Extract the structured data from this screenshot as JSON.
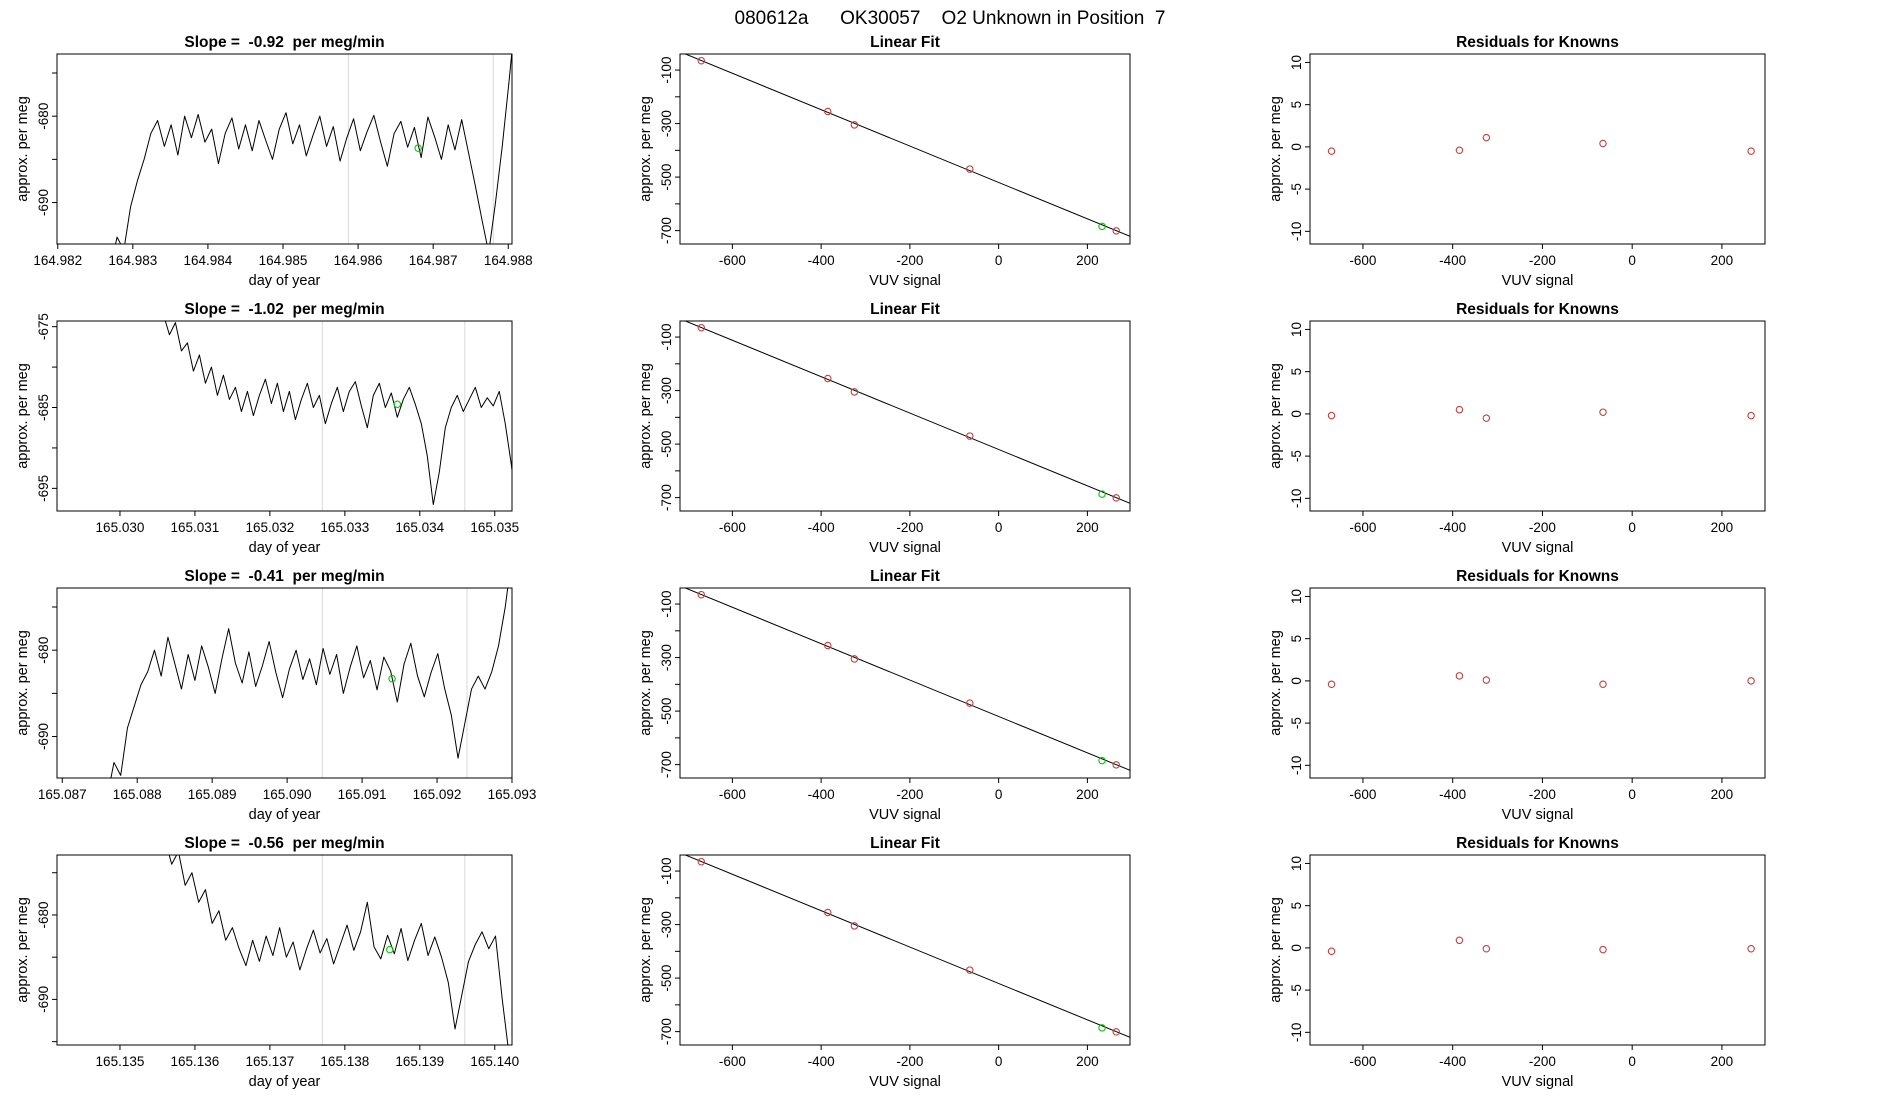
{
  "header": {
    "title": "080612a      OK30057    O2 Unknown in Position  7"
  },
  "colors": {
    "series": "#000000",
    "grid": "#d9d9d9",
    "red_point": "#bf4040",
    "green_point": "#00c800",
    "box": "#000000",
    "text": "#000000"
  },
  "chart_data": [
    {
      "type": "line",
      "panel": "timeseries",
      "col": 1,
      "title": "Slope =  -0.92  per meg/min",
      "xlabel": "day of year",
      "ylabel": "approx. per meg",
      "xlim": [
        164.98199,
        164.98805
      ],
      "ylim": [
        -694.8,
        -672.8
      ],
      "xticks": [
        164.982,
        164.983,
        164.984,
        164.985,
        164.986,
        164.987,
        164.988
      ],
      "xtick_labels": [
        "164.982",
        "164.983",
        "164.984",
        "164.985",
        "164.986",
        "164.987",
        "164.988"
      ],
      "ymajor": [
        -690,
        -680
      ],
      "ymajor_labels": [
        "-690",
        "-680"
      ],
      "yminor": [
        -685,
        -675
      ],
      "gridlines_x": [
        164.98587,
        164.9878
      ],
      "line": {
        "x0": 164.9827,
        "dx": 9e-05,
        "y": [
          -697.5,
          -694.0,
          -695.5,
          -690.5,
          -687.5,
          -685.0,
          -682.0,
          -680.5,
          -683.5,
          -681.0,
          -684.5,
          -680.0,
          -682.5,
          -679.8,
          -683.0,
          -681.5,
          -685.5,
          -682.0,
          -680.2,
          -683.8,
          -681.0,
          -684.0,
          -680.5,
          -682.8,
          -685.0,
          -681.5,
          -679.6,
          -683.2,
          -681.0,
          -684.6,
          -682.2,
          -680.0,
          -683.5,
          -681.2,
          -685.2,
          -682.5,
          -680.3,
          -684.0,
          -681.8,
          -679.9,
          -683.0,
          -685.8,
          -682.0,
          -680.6,
          -683.6,
          -681.3,
          -684.8,
          -680.1,
          -682.4,
          -685.0,
          -681.0,
          -683.9,
          -680.4,
          -684.2,
          -688.0,
          -692.0,
          -695.8,
          -690.0,
          -683.5,
          -676.0,
          -668.0
        ]
      },
      "green_marker": [
        164.9868,
        -683.7
      ]
    },
    {
      "type": "scatter",
      "panel": "linear_fit",
      "col": 2,
      "title": "Linear Fit",
      "xlabel": "VUV signal",
      "ylabel": "approx. per meg",
      "xlim": [
        -718,
        296
      ],
      "ylim": [
        -750,
        -40
      ],
      "xticks": [
        -600,
        -400,
        -200,
        0,
        200
      ],
      "xtick_labels": [
        "-600",
        "-400",
        "-200",
        "0",
        "200"
      ],
      "ymajor": [
        -700,
        -500,
        -300,
        -100
      ],
      "ymajor_labels": [
        "-700",
        "-500",
        "-300",
        "-100"
      ],
      "yminor": [
        -600,
        -400,
        -200
      ],
      "red_points": [
        [
          -670,
          -65
        ],
        [
          -385,
          -255
        ],
        [
          -325,
          -305
        ],
        [
          -65,
          -470
        ],
        [
          265,
          -701
        ]
      ],
      "green_point": [
        233,
        -684
      ],
      "fit_line": {
        "slope": -0.68,
        "intercept": -520
      }
    },
    {
      "type": "scatter",
      "panel": "residuals",
      "col": 3,
      "title": "Residuals for Knowns",
      "xlabel": "VUV signal",
      "ylabel": "approx. per meg",
      "xlim": [
        -718,
        296
      ],
      "ylim": [
        -11.5,
        11
      ],
      "xticks": [
        -600,
        -400,
        -200,
        0,
        200
      ],
      "xtick_labels": [
        "-600",
        "-400",
        "-200",
        "0",
        "200"
      ],
      "ymajor": [
        -10,
        -5,
        0,
        5,
        10
      ],
      "ymajor_labels": [
        "-10",
        "-5",
        "0",
        "5",
        "10"
      ],
      "yminor": [],
      "red_points": [
        [
          -670,
          -0.5
        ],
        [
          -385,
          -0.4
        ],
        [
          -325,
          1.1
        ],
        [
          -65,
          0.4
        ],
        [
          265,
          -0.5
        ]
      ]
    },
    {
      "type": "line",
      "panel": "timeseries",
      "col": 1,
      "title": "Slope =  -1.02  per meg/min",
      "xlabel": "day of year",
      "ylabel": "approx. per meg",
      "xlim": [
        165.02916,
        165.03523
      ],
      "ylim": [
        -697.8,
        -674.3
      ],
      "xticks": [
        165.03,
        165.031,
        165.032,
        165.033,
        165.034,
        165.035
      ],
      "xtick_labels": [
        "165.030",
        "165.031",
        "165.032",
        "165.033",
        "165.034",
        "165.035"
      ],
      "ymajor": [
        -695,
        -685,
        -675
      ],
      "ymajor_labels": [
        "-695",
        "-685",
        "-675"
      ],
      "yminor": [
        -690,
        -680
      ],
      "gridlines_x": [
        165.0327,
        165.0346
      ],
      "line": {
        "x0": 165.0305,
        "dx": 8e-05,
        "y": [
          -670.0,
          -673.5,
          -676.0,
          -674.5,
          -678.0,
          -677.0,
          -680.5,
          -678.5,
          -682.0,
          -680.0,
          -683.5,
          -681.0,
          -684.0,
          -682.5,
          -685.5,
          -683.0,
          -686.0,
          -683.5,
          -681.5,
          -684.5,
          -682.0,
          -685.5,
          -683.0,
          -686.5,
          -684.0,
          -682.0,
          -685.0,
          -683.5,
          -687.0,
          -684.5,
          -682.5,
          -685.5,
          -683.0,
          -681.8,
          -684.8,
          -687.5,
          -683.5,
          -682.0,
          -685.0,
          -683.2,
          -686.2,
          -684.0,
          -682.5,
          -684.6,
          -687.0,
          -691.0,
          -697.0,
          -693.0,
          -687.5,
          -685.0,
          -683.5,
          -685.5,
          -684.0,
          -682.5,
          -685.0,
          -683.8,
          -684.8,
          -683.0,
          -687.0,
          -692.0,
          -698.0
        ]
      },
      "green_marker": [
        165.0337,
        -684.6
      ]
    },
    {
      "type": "scatter",
      "panel": "linear_fit",
      "col": 2,
      "title": "Linear Fit",
      "xlabel": "VUV signal",
      "ylabel": "approx. per meg",
      "xlim": [
        -718,
        296
      ],
      "ylim": [
        -750,
        -40
      ],
      "xticks": [
        -600,
        -400,
        -200,
        0,
        200
      ],
      "xtick_labels": [
        "-600",
        "-400",
        "-200",
        "0",
        "200"
      ],
      "ymajor": [
        -700,
        -500,
        -300,
        -100
      ],
      "ymajor_labels": [
        "-700",
        "-500",
        "-300",
        "-100"
      ],
      "yminor": [
        -600,
        -400,
        -200
      ],
      "red_points": [
        [
          -670,
          -65
        ],
        [
          -385,
          -255
        ],
        [
          -325,
          -305
        ],
        [
          -65,
          -470
        ],
        [
          265,
          -701
        ]
      ],
      "green_point": [
        233,
        -687
      ],
      "fit_line": {
        "slope": -0.68,
        "intercept": -520
      }
    },
    {
      "type": "scatter",
      "panel": "residuals",
      "col": 3,
      "title": "Residuals for Knowns",
      "xlabel": "VUV signal",
      "ylabel": "approx. per meg",
      "xlim": [
        -718,
        296
      ],
      "ylim": [
        -11.5,
        11
      ],
      "xticks": [
        -600,
        -400,
        -200,
        0,
        200
      ],
      "xtick_labels": [
        "-600",
        "-400",
        "-200",
        "0",
        "200"
      ],
      "ymajor": [
        -10,
        -5,
        0,
        5,
        10
      ],
      "ymajor_labels": [
        "-10",
        "-5",
        "0",
        "5",
        "10"
      ],
      "yminor": [],
      "red_points": [
        [
          -670,
          -0.2
        ],
        [
          -385,
          0.5
        ],
        [
          -325,
          -0.5
        ],
        [
          -65,
          0.2
        ],
        [
          265,
          -0.2
        ]
      ]
    },
    {
      "type": "line",
      "panel": "timeseries",
      "col": 1,
      "title": "Slope =  -0.41  per meg/min",
      "xlabel": "day of year",
      "ylabel": "approx. per meg",
      "xlim": [
        165.08693,
        165.093
      ],
      "ylim": [
        -694.8,
        -672.8
      ],
      "xticks": [
        165.087,
        165.088,
        165.089,
        165.09,
        165.091,
        165.092,
        165.093
      ],
      "xtick_labels": [
        "165.087",
        "165.088",
        "165.089",
        "165.090",
        "165.091",
        "165.092",
        "165.093"
      ],
      "ymajor": [
        -690,
        -680
      ],
      "ymajor_labels": [
        "-690",
        "-680"
      ],
      "yminor": [
        -685,
        -675
      ],
      "gridlines_x": [
        165.09047,
        165.0924
      ],
      "line": {
        "x0": 165.0876,
        "dx": 9e-05,
        "y": [
          -697.0,
          -693.0,
          -694.5,
          -689.0,
          -686.5,
          -684.0,
          -682.5,
          -680.0,
          -683.0,
          -678.5,
          -681.5,
          -684.5,
          -680.5,
          -683.5,
          -679.5,
          -682.0,
          -685.0,
          -681.0,
          -677.5,
          -681.5,
          -683.8,
          -680.2,
          -684.2,
          -681.8,
          -679.0,
          -682.6,
          -685.5,
          -682.2,
          -680.0,
          -683.4,
          -681.0,
          -684.0,
          -679.8,
          -682.8,
          -680.5,
          -685.0,
          -682.0,
          -679.5,
          -683.2,
          -681.2,
          -684.6,
          -680.8,
          -682.4,
          -686.0,
          -681.6,
          -679.2,
          -683.0,
          -685.4,
          -682.6,
          -680.4,
          -684.4,
          -687.5,
          -692.5,
          -688.5,
          -684.5,
          -683.0,
          -684.5,
          -682.5,
          -679.5,
          -675.0,
          -669.0
        ]
      },
      "green_marker": [
        165.0914,
        -683.3
      ]
    },
    {
      "type": "scatter",
      "panel": "linear_fit",
      "col": 2,
      "title": "Linear Fit",
      "xlabel": "VUV signal",
      "ylabel": "approx. per meg",
      "xlim": [
        -718,
        296
      ],
      "ylim": [
        -750,
        -40
      ],
      "xticks": [
        -600,
        -400,
        -200,
        0,
        200
      ],
      "xtick_labels": [
        "-600",
        "-400",
        "-200",
        "0",
        "200"
      ],
      "ymajor": [
        -700,
        -500,
        -300,
        -100
      ],
      "ymajor_labels": [
        "-700",
        "-500",
        "-300",
        "-100"
      ],
      "yminor": [
        -600,
        -400,
        -200
      ],
      "red_points": [
        [
          -670,
          -65
        ],
        [
          -385,
          -255
        ],
        [
          -325,
          -305
        ],
        [
          -65,
          -470
        ],
        [
          265,
          -701
        ]
      ],
      "green_point": [
        233,
        -685
      ],
      "fit_line": {
        "slope": -0.68,
        "intercept": -520
      }
    },
    {
      "type": "scatter",
      "panel": "residuals",
      "col": 3,
      "title": "Residuals for Knowns",
      "xlabel": "VUV signal",
      "ylabel": "approx. per meg",
      "xlim": [
        -718,
        296
      ],
      "ylim": [
        -11.5,
        11
      ],
      "xticks": [
        -600,
        -400,
        -200,
        0,
        200
      ],
      "xtick_labels": [
        "-600",
        "-400",
        "-200",
        "0",
        "200"
      ],
      "ymajor": [
        -10,
        -5,
        0,
        5,
        10
      ],
      "ymajor_labels": [
        "-10",
        "-5",
        "0",
        "5",
        "10"
      ],
      "yminor": [],
      "red_points": [
        [
          -670,
          -0.4
        ],
        [
          -385,
          0.6
        ],
        [
          -325,
          0.1
        ],
        [
          -65,
          -0.4
        ],
        [
          265,
          0.0
        ]
      ]
    },
    {
      "type": "line",
      "panel": "timeseries",
      "col": 1,
      "title": "Slope =  -0.56  per meg/min",
      "xlabel": "day of year",
      "ylabel": "approx. per meg",
      "xlim": [
        165.13416,
        165.14023
      ],
      "ylim": [
        -695.4,
        -672.9
      ],
      "xticks": [
        165.135,
        165.136,
        165.137,
        165.138,
        165.139,
        165.14
      ],
      "xtick_labels": [
        "165.135",
        "165.136",
        "165.137",
        "165.138",
        "165.139",
        "165.140"
      ],
      "ymajor": [
        -690,
        -680
      ],
      "ymajor_labels": [
        "-690",
        "-680"
      ],
      "yminor": [
        -695,
        -685,
        -675
      ],
      "gridlines_x": [
        165.1377,
        165.1396
      ],
      "line": {
        "x0": 165.1356,
        "dx": 9e-05,
        "y": [
          -671.0,
          -674.0,
          -672.5,
          -676.5,
          -675.0,
          -678.5,
          -677.0,
          -681.0,
          -679.5,
          -683.0,
          -681.5,
          -684.0,
          -686.0,
          -683.0,
          -685.5,
          -682.5,
          -684.8,
          -681.5,
          -685.0,
          -683.2,
          -686.5,
          -684.0,
          -681.8,
          -684.5,
          -682.8,
          -685.8,
          -683.5,
          -681.2,
          -684.2,
          -682.0,
          -678.5,
          -683.8,
          -685.2,
          -682.4,
          -684.6,
          -681.6,
          -685.4,
          -683.0,
          -681.0,
          -684.8,
          -682.6,
          -685.0,
          -688.0,
          -693.5,
          -689.5,
          -685.5,
          -683.5,
          -682.0,
          -684.0,
          -682.5,
          -690.0,
          -696.5
        ]
      },
      "green_marker": [
        165.1386,
        -684.1
      ]
    },
    {
      "type": "scatter",
      "panel": "linear_fit",
      "col": 2,
      "title": "Linear Fit",
      "xlabel": "VUV signal",
      "ylabel": "approx. per meg",
      "xlim": [
        -718,
        296
      ],
      "ylim": [
        -750,
        -40
      ],
      "xticks": [
        -600,
        -400,
        -200,
        0,
        200
      ],
      "xtick_labels": [
        "-600",
        "-400",
        "-200",
        "0",
        "200"
      ],
      "ymajor": [
        -700,
        -500,
        -300,
        -100
      ],
      "ymajor_labels": [
        "-700",
        "-500",
        "-300",
        "-100"
      ],
      "yminor": [
        -600,
        -400,
        -200
      ],
      "red_points": [
        [
          -670,
          -65
        ],
        [
          -385,
          -255
        ],
        [
          -325,
          -305
        ],
        [
          -65,
          -470
        ],
        [
          265,
          -701
        ]
      ],
      "green_point": [
        233,
        -686
      ],
      "fit_line": {
        "slope": -0.68,
        "intercept": -520
      }
    },
    {
      "type": "scatter",
      "panel": "residuals",
      "col": 3,
      "title": "Residuals for Knowns",
      "xlabel": "VUV signal",
      "ylabel": "approx. per meg",
      "xlim": [
        -718,
        296
      ],
      "ylim": [
        -11.5,
        11
      ],
      "xticks": [
        -600,
        -400,
        -200,
        0,
        200
      ],
      "xtick_labels": [
        "-600",
        "-400",
        "-200",
        "0",
        "200"
      ],
      "ymajor": [
        -10,
        -5,
        0,
        5,
        10
      ],
      "ymajor_labels": [
        "-10",
        "-5",
        "0",
        "5",
        "10"
      ],
      "yminor": [],
      "red_points": [
        [
          -670,
          -0.4
        ],
        [
          -385,
          0.9
        ],
        [
          -325,
          -0.1
        ],
        [
          -65,
          -0.2
        ],
        [
          265,
          -0.1
        ]
      ]
    }
  ]
}
